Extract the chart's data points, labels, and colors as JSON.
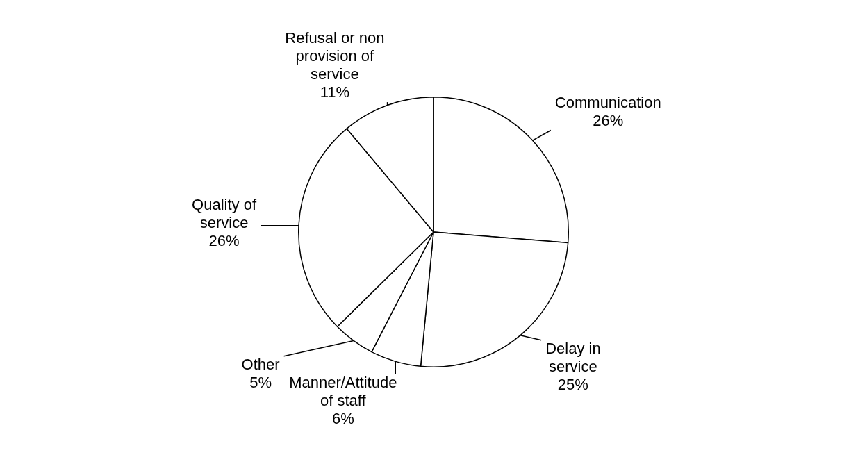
{
  "chart_data": {
    "type": "pie",
    "categories": [
      "Communication",
      "Delay in service",
      "Manner/Attitude of staff",
      "Other",
      "Quality of service",
      "Refusal or non provision of service"
    ],
    "values": [
      26,
      25,
      6,
      5,
      26,
      11
    ],
    "value_labels": [
      "26%",
      "25%",
      "6%",
      "5%",
      "26%",
      "11%"
    ],
    "colors": [
      "#ffffff",
      "#ffffff",
      "#ffffff",
      "#ffffff",
      "#ffffff",
      "#ffffff"
    ],
    "legend": false
  }
}
